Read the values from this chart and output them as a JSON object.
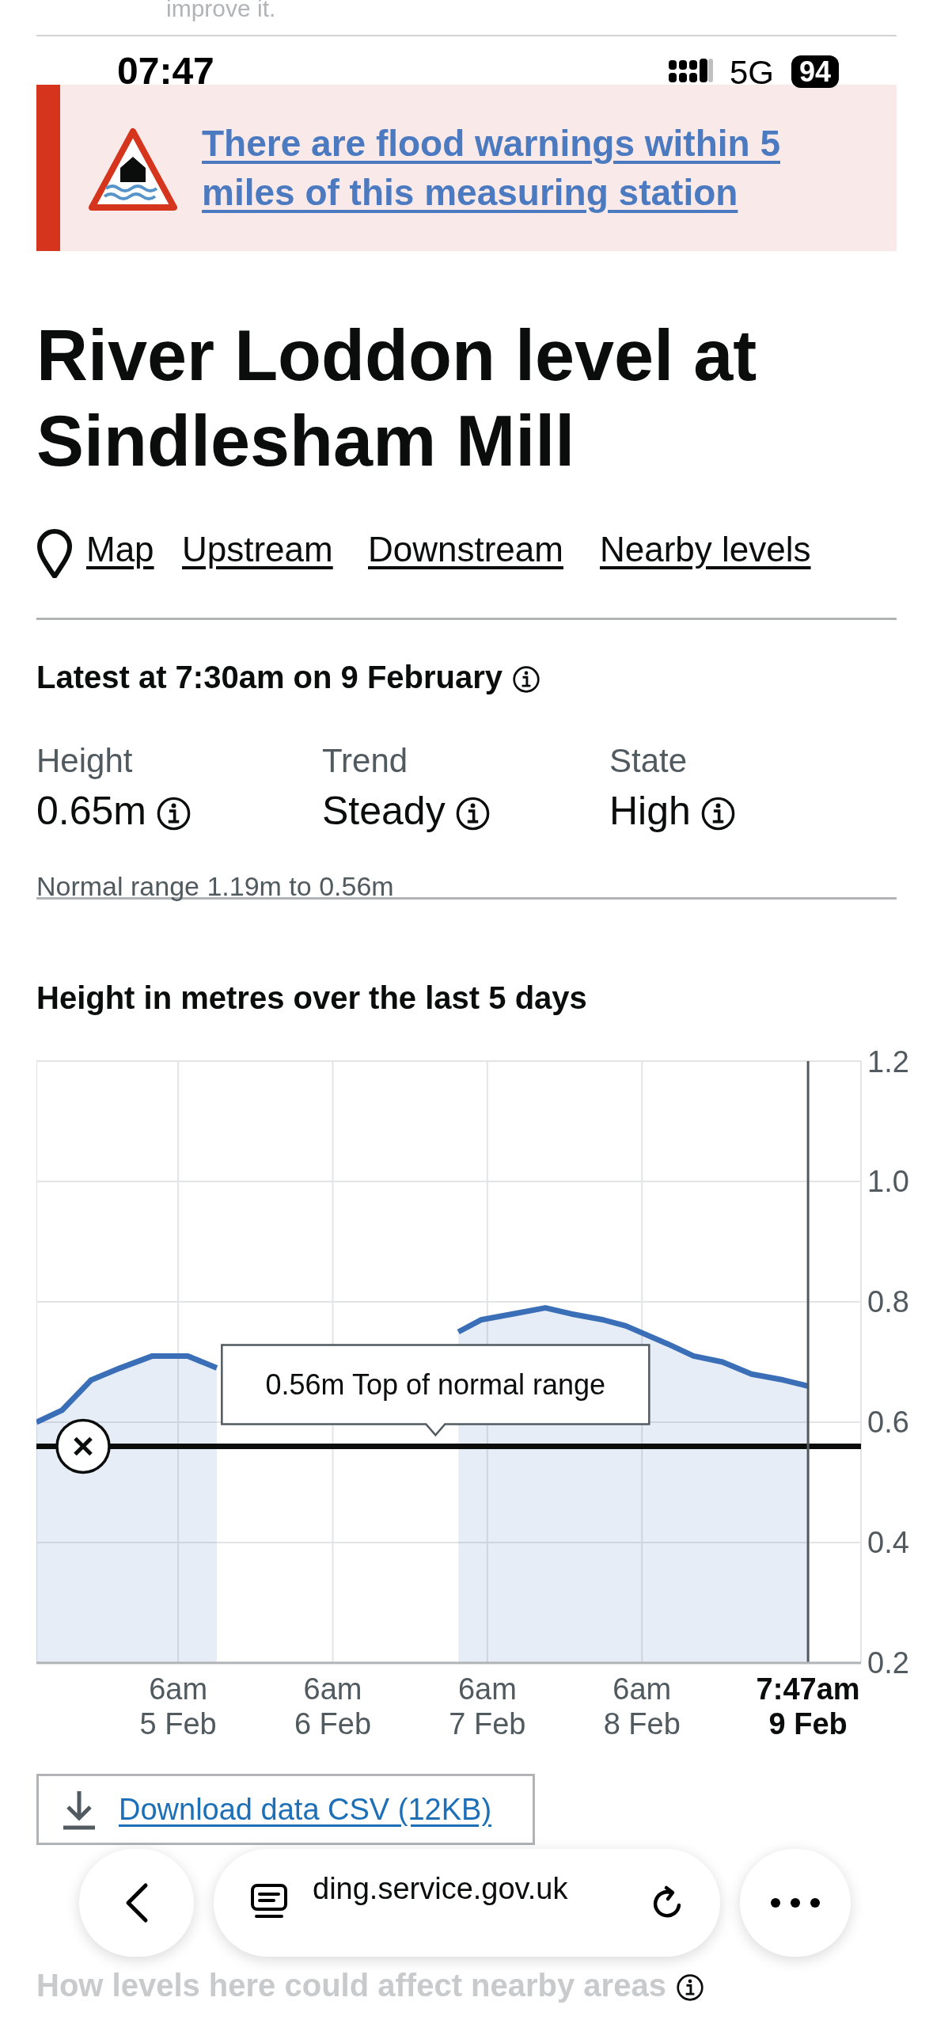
{
  "chart_data": {
    "type": "area",
    "title": "River Loddon level at Sindlesham Mill",
    "subtitle": "Height in metres over the last 5 days",
    "x": [
      "--02-04T08:00",
      "--02-04T12:00",
      "--02-04T16:30",
      "--02-04T21:00",
      "--02-05T02:00",
      "--02-05T07:30",
      "--02-05T12:00",
      "--02-06T12:00",
      "--02-07T01:30",
      "--02-07T05:00",
      "--02-07T10:00",
      "--02-07T15:00",
      "--02-07T19:00",
      "--02-08T00:00",
      "--02-08T03:30",
      "--02-08T10:00",
      "--02-08T14:00",
      "--02-08T18:30",
      "--02-08T23:00",
      "--02-09T04:00",
      "--02-09T07:45"
    ],
    "series": [
      {
        "color": "#3a6fb8",
        "values": [
          0.6,
          0.62,
          0.67,
          0.69,
          0.71,
          0.71,
          0.69,
          null,
          0.75,
          0.77,
          0.78,
          0.79,
          0.78,
          0.77,
          0.76,
          0.73,
          0.71,
          0.7,
          0.68,
          0.67,
          0.66
        ]
      }
    ],
    "xlim": [
      "--02-04T08:00",
      "--02-09T16:00"
    ],
    "xticks": [
      {
        "value": "--02-05T06:00",
        "label": "6am\n5 Feb"
      },
      {
        "value": "--02-06T06:00",
        "label": "6am\n6 Feb"
      },
      {
        "value": "--02-07T06:00",
        "label": "6am\n7 Feb"
      },
      {
        "value": "--02-08T06:00",
        "label": "6am\n8 Feb"
      },
      {
        "value": "--02-09T07:47",
        "label": "7:47am\n9 Feb"
      }
    ],
    "ylim": [
      0.2,
      1.2
    ],
    "yticks": [
      0.2,
      0.4,
      0.6,
      0.8,
      {
        "value": 1,
        "label": "1.0"
      },
      1.2
    ],
    "ref_lines": [
      {
        "axis": "y",
        "value": 0.56,
        "label": "0.56m Top of normal range",
        "color": "#0b0c0c"
      },
      {
        "axis": "x",
        "value": "--02-09T07:47",
        "color": "#505a5f"
      }
    ],
    "grid": true,
    "legend": false,
    "line_style": "solid",
    "annotations": [
      "improve it.",
      "07:47",
      "5G",
      "94",
      "There are flood warnings within 5 miles of this measuring station",
      "Map",
      "Upstream",
      "Downstream",
      "Nearby levels",
      "Latest at 7:30am on 9 February",
      "Height",
      "0.65m",
      "Trend",
      "Steady",
      "State",
      "High",
      "Normal range 1.19m to 0.56m",
      "Download data CSV (12KB)",
      "ding.service.gov.uk",
      "How levels here could affect nearby areas"
    ]
  }
}
